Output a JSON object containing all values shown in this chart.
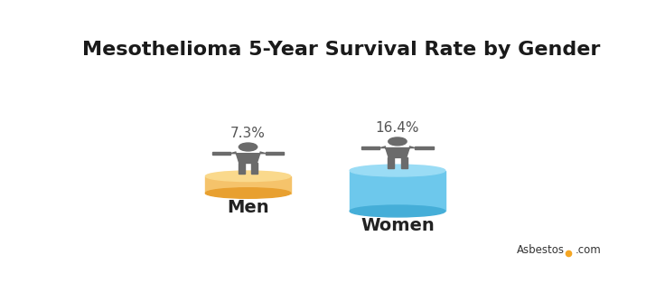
{
  "title": "Mesothelioma 5-Year Survival Rate by Gender",
  "title_fontsize": 16,
  "background_color": "#ffffff",
  "categories": [
    "Men",
    "Women"
  ],
  "values": [
    "7.3%",
    "16.4%"
  ],
  "cylinder_colors_main": [
    "#F5C36B",
    "#6DC8EC"
  ],
  "cylinder_colors_dark": [
    "#E8A030",
    "#45AED8"
  ],
  "cylinder_colors_top": [
    "#FAD98C",
    "#9ADCF5"
  ],
  "person_color": "#6B6B6B",
  "label_fontsize": 14,
  "value_fontsize": 11,
  "value_color": "#555555",
  "watermark": "Asbestos",
  "watermark_dot_color": "#F5A623",
  "watermark_com": ".com",
  "fig_width": 7.36,
  "fig_height": 3.24,
  "dpi": 100
}
